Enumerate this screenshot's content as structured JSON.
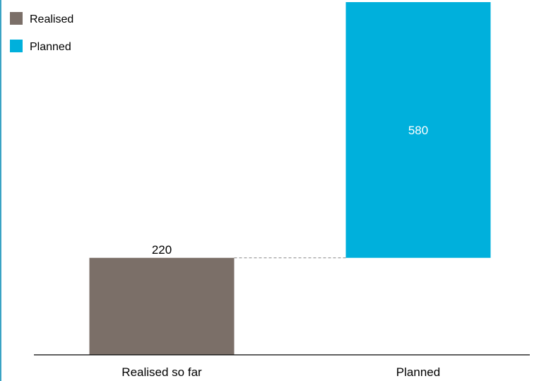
{
  "chart_data": {
    "type": "bar",
    "subtype": "waterfall",
    "categories": [
      "Realised so far",
      "Planned"
    ],
    "series": [
      {
        "name": "Realised",
        "color": "#7b6f68",
        "values": [
          220,
          null
        ],
        "base": [
          0,
          null
        ]
      },
      {
        "name": "Planned",
        "color": "#00b0dc",
        "values": [
          null,
          580
        ],
        "base": [
          null,
          220
        ]
      }
    ],
    "data_labels": [
      "220",
      "580"
    ],
    "data_label_colors": [
      "#000000",
      "#ffffff"
    ],
    "legend": {
      "placement": "top-left",
      "entries": [
        "Realised",
        "Planned"
      ]
    },
    "connector": {
      "style": "dashed",
      "color": "#888888"
    },
    "ylim": [
      0,
      800
    ],
    "grid": false,
    "xlabel": "",
    "ylabel": ""
  }
}
